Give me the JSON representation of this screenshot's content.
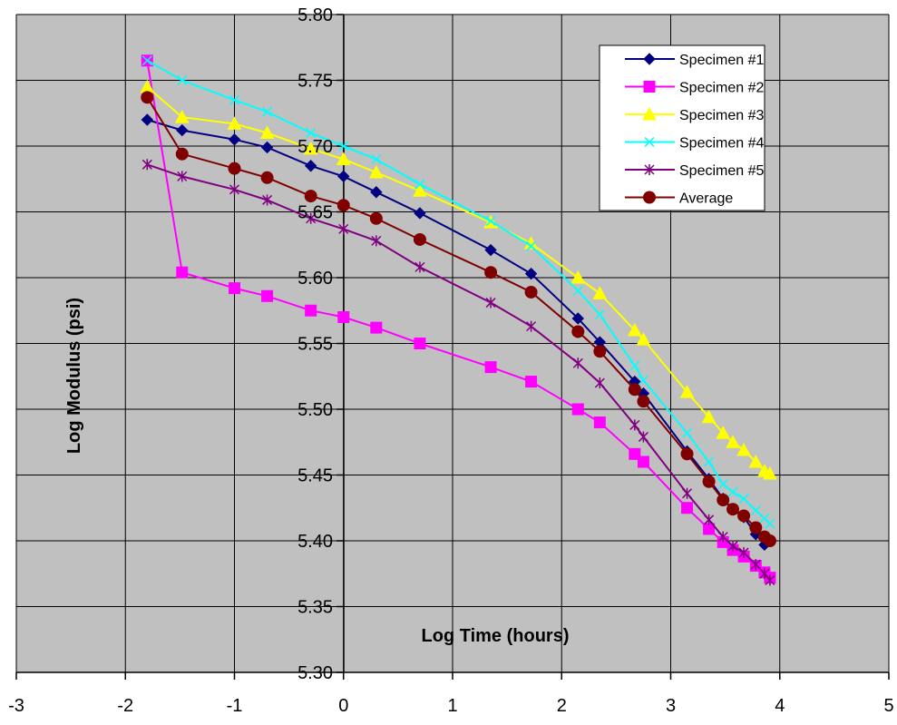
{
  "chart_data": {
    "type": "line",
    "title": "",
    "xlabel": "Log Time (hours)",
    "ylabel": "Log Modulus (psi)",
    "xlim": [
      -3,
      5
    ],
    "ylim": [
      5.3,
      5.8
    ],
    "x_ticks": [
      "-3",
      "-2",
      "-1",
      "0",
      "1",
      "2",
      "3",
      "4",
      "5"
    ],
    "y_ticks": [
      "5.30",
      "5.35",
      "5.40",
      "5.45",
      "5.50",
      "5.55",
      "5.60",
      "5.65",
      "5.70",
      "5.75",
      "5.80"
    ],
    "grid": true,
    "plot_background": "#c0c0c0",
    "legend_position": "top-right",
    "series": [
      {
        "name": "Specimen #1",
        "color": "#000080",
        "marker": "diamond",
        "x": [
          -1.8,
          -1.48,
          -1.0,
          -0.7,
          -0.3,
          0.0,
          0.3,
          0.7,
          1.35,
          1.72,
          2.15,
          2.35,
          2.67,
          2.75,
          3.15,
          3.35,
          3.48,
          3.57,
          3.67,
          3.78,
          3.86
        ],
        "y": [
          5.72,
          5.712,
          5.705,
          5.699,
          5.685,
          5.677,
          5.665,
          5.649,
          5.621,
          5.603,
          5.569,
          5.551,
          5.521,
          5.512,
          5.468,
          5.447,
          5.432,
          5.424,
          5.418,
          5.405,
          5.397
        ]
      },
      {
        "name": "Specimen #2",
        "color": "#ff00ff",
        "marker": "square",
        "x": [
          -1.8,
          -1.48,
          -1.0,
          -0.7,
          -0.3,
          0.0,
          0.3,
          0.7,
          1.35,
          1.72,
          2.15,
          2.35,
          2.67,
          2.75,
          3.15,
          3.35,
          3.48,
          3.57,
          3.67,
          3.78,
          3.86,
          3.91
        ],
        "y": [
          5.765,
          5.604,
          5.592,
          5.586,
          5.575,
          5.57,
          5.562,
          5.55,
          5.532,
          5.521,
          5.5,
          5.49,
          5.466,
          5.46,
          5.425,
          5.409,
          5.399,
          5.393,
          5.388,
          5.381,
          5.376,
          5.372
        ]
      },
      {
        "name": "Specimen #3",
        "color": "#ffff00",
        "marker": "triangle",
        "x": [
          -1.8,
          -1.48,
          -1.0,
          -0.7,
          -0.3,
          0.0,
          0.3,
          0.7,
          1.35,
          1.72,
          2.15,
          2.35,
          2.67,
          2.75,
          3.15,
          3.35,
          3.48,
          3.57,
          3.67,
          3.78,
          3.86,
          3.91
        ],
        "y": [
          5.745,
          5.722,
          5.717,
          5.71,
          5.698,
          5.69,
          5.68,
          5.666,
          5.642,
          5.626,
          5.6,
          5.588,
          5.56,
          5.553,
          5.513,
          5.494,
          5.482,
          5.475,
          5.469,
          5.46,
          5.453,
          5.451
        ]
      },
      {
        "name": "Specimen #4",
        "color": "#00ffff",
        "marker": "x",
        "x": [
          -1.8,
          -1.48,
          -1.0,
          -0.7,
          -0.3,
          0.0,
          0.3,
          0.7,
          1.35,
          1.72,
          2.15,
          2.35,
          2.67,
          2.75,
          3.15,
          3.35,
          3.48,
          3.57,
          3.67,
          3.78,
          3.86,
          3.91
        ],
        "y": [
          5.765,
          5.75,
          5.735,
          5.726,
          5.71,
          5.7,
          5.69,
          5.671,
          5.643,
          5.624,
          5.59,
          5.572,
          5.533,
          5.522,
          5.482,
          5.46,
          5.443,
          5.437,
          5.432,
          5.423,
          5.417,
          5.413
        ]
      },
      {
        "name": "Specimen #5",
        "color": "#800080",
        "marker": "asterisk",
        "x": [
          -1.8,
          -1.48,
          -1.0,
          -0.7,
          -0.3,
          0.0,
          0.3,
          0.7,
          1.35,
          1.72,
          2.15,
          2.35,
          2.67,
          2.75,
          3.15,
          3.35,
          3.48,
          3.57,
          3.67,
          3.78,
          3.86,
          3.91
        ],
        "y": [
          5.686,
          5.677,
          5.667,
          5.659,
          5.645,
          5.637,
          5.628,
          5.608,
          5.581,
          5.563,
          5.535,
          5.52,
          5.488,
          5.479,
          5.436,
          5.416,
          5.403,
          5.396,
          5.391,
          5.382,
          5.375,
          5.37
        ]
      },
      {
        "name": "Average",
        "color": "#800000",
        "marker": "circle",
        "x": [
          -1.8,
          -1.48,
          -1.0,
          -0.7,
          -0.3,
          0.0,
          0.3,
          0.7,
          1.35,
          1.72,
          2.15,
          2.35,
          2.67,
          2.75,
          3.15,
          3.35,
          3.48,
          3.57,
          3.67,
          3.78,
          3.86,
          3.91
        ],
        "y": [
          5.737,
          5.694,
          5.683,
          5.676,
          5.662,
          5.655,
          5.645,
          5.629,
          5.604,
          5.589,
          5.559,
          5.544,
          5.515,
          5.506,
          5.466,
          5.445,
          5.431,
          5.424,
          5.419,
          5.41,
          5.403,
          5.4
        ]
      }
    ]
  }
}
